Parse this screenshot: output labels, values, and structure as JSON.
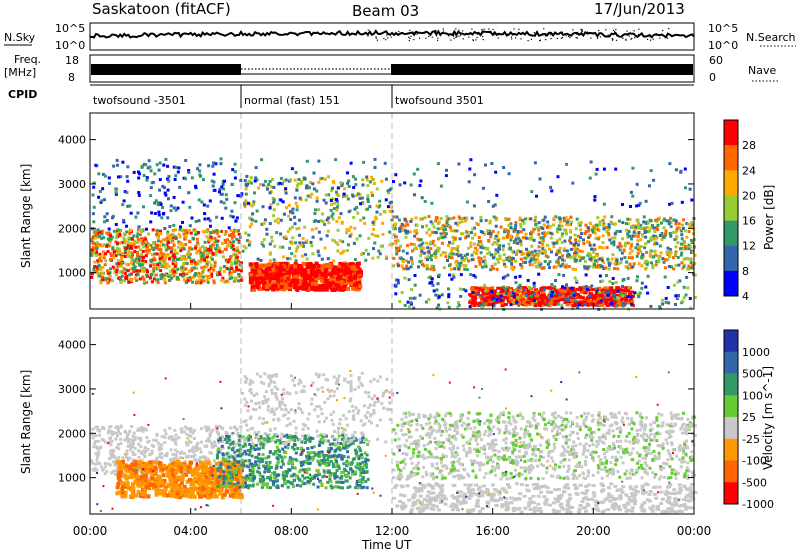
{
  "header": {
    "station": "Saskatoon (fitACF)",
    "beam": "Beam 03",
    "date": "17/Jun/2013"
  },
  "top_panels": {
    "nsky_label": "N.Sky",
    "nsky_ticks": [
      "10^5",
      "10^0"
    ],
    "nsearch_label": "N.Search",
    "nsearch_ticks": [
      "10^5",
      "10^0"
    ],
    "freq_label_line1": "Freq.",
    "freq_label_line2": "[MHz]",
    "freq_ticks": [
      "18",
      "8"
    ],
    "nave_label": "Nave",
    "nave_ticks": [
      "60",
      "0"
    ],
    "cpid_label": "CPID",
    "cpid_segments": [
      {
        "label": "twofsound -3501",
        "start_hour": 0,
        "end_hour": 6
      },
      {
        "label": "normal (fast) 151",
        "start_hour": 6,
        "end_hour": 12
      },
      {
        "label": "twofsound 3501",
        "start_hour": 12,
        "end_hour": 24
      }
    ]
  },
  "chart_data": [
    {
      "type": "heatmap",
      "name": "power",
      "ylabel": "Slant Range [km]",
      "y_ticks": [
        "4000",
        "3000",
        "2000",
        "1000"
      ],
      "ylim": [
        180,
        4600
      ],
      "xlim": [
        0,
        24
      ],
      "colorbar_label": "Power [dB]",
      "colorbar_ticks": [
        "28",
        "24",
        "20",
        "16",
        "12",
        "8",
        "4"
      ],
      "colors": [
        "#ff0000",
        "#ff6600",
        "#ffaa00",
        "#99cc33",
        "#339966",
        "#3366aa",
        "#0000ff"
      ],
      "dominant_regions": [
        {
          "hours": [
            0,
            6
          ],
          "range_km": [
            800,
            2000
          ],
          "level": "12-28 dB"
        },
        {
          "hours": [
            6.5,
            10.5
          ],
          "range_km": [
            700,
            1200
          ],
          "level": "28 dB"
        },
        {
          "hours": [
            15,
            21
          ],
          "range_km": [
            300,
            700
          ],
          "level": "24-28 dB"
        },
        {
          "hours": [
            12,
            24
          ],
          "range_km": [
            1200,
            2200
          ],
          "level": "12-24 dB"
        }
      ]
    },
    {
      "type": "heatmap",
      "name": "velocity",
      "ylabel": "Slant Range [km]",
      "y_ticks": [
        "4000",
        "3000",
        "2000",
        "1000"
      ],
      "ylim": [
        180,
        4600
      ],
      "xlim": [
        0,
        24
      ],
      "colorbar_label": "Velocity [m s^-1]",
      "colorbar_ticks": [
        "1000",
        "500",
        "100",
        "25",
        "-25",
        "-100",
        "-500",
        "-1000"
      ],
      "colors": [
        "#2233aa",
        "#3366aa",
        "#339966",
        "#66cc33",
        "#c8c8c8",
        "#ff9900",
        "#ff6600",
        "#ff0000"
      ],
      "dominant_regions": [
        {
          "hours": [
            1,
            6
          ],
          "range_km": [
            600,
            1400
          ],
          "level": "-100 to -500"
        },
        {
          "hours": [
            5,
            11
          ],
          "range_km": [
            800,
            2000
          ],
          "level": "25 to 500"
        },
        {
          "hours": [
            12,
            24
          ],
          "range_km": [
            300,
            2400
          ],
          "level": "-25 to 25 (ground scatter)"
        }
      ]
    }
  ],
  "x_axis": {
    "tick_labels": [
      "00:00",
      "04:00",
      "08:00",
      "12:00",
      "16:00",
      "20:00",
      "00:00"
    ],
    "xlabel": "Time UT"
  }
}
